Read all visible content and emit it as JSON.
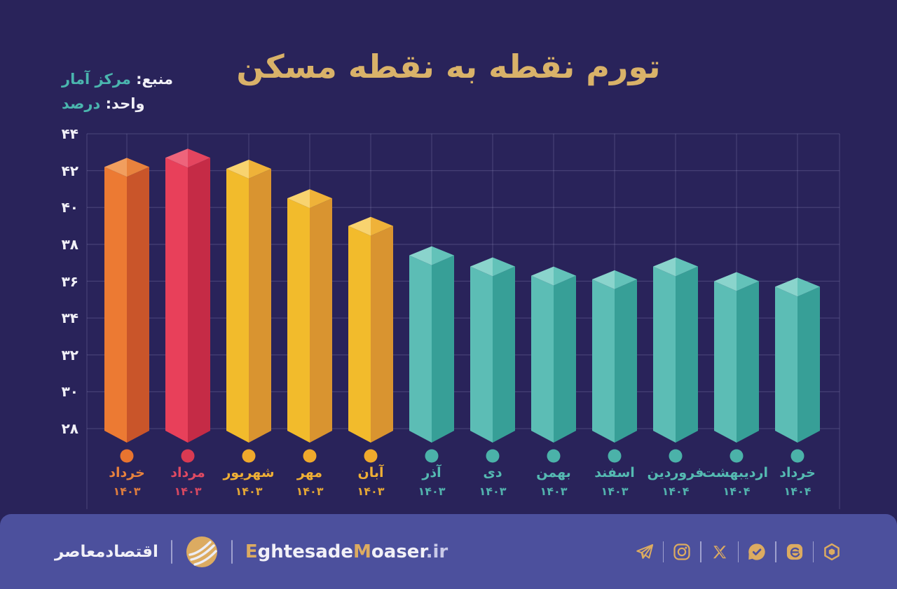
{
  "header": {
    "title": "تورم نقطه به نقطه مسکن",
    "source_label": "منبع:",
    "source_value": "مرکز آمار",
    "unit_label": "واحد:",
    "unit_value": "درصد"
  },
  "chart_data": {
    "type": "bar",
    "title": "تورم نقطه به نقطه مسکن",
    "source": "مرکز آمار",
    "ylabel": "درصد",
    "xlabel": "",
    "ylim": [
      28,
      44
    ],
    "ytick_step": 2,
    "yticks_fa": [
      "۴۴",
      "۴۲",
      "۴۰",
      "۳۸",
      "۳۶",
      "۳۴",
      "۳۲",
      "۳۰",
      "۲۸"
    ],
    "grid": true,
    "legend": "none",
    "layout": {
      "months_order": "left-to-right",
      "yaxis_side": "left",
      "bar_style": "isometric-3d-column",
      "category_marker": "colored-dot-below-bar"
    },
    "note": "no numeric data labels shown; values estimated from gridlines",
    "categories": [
      {
        "month": "خرداد",
        "year": "۱۴۰۳",
        "group": "orange"
      },
      {
        "month": "مرداد",
        "year": "۱۴۰۳",
        "group": "red"
      },
      {
        "month": "شهریور",
        "year": "۱۴۰۳",
        "group": "yellow"
      },
      {
        "month": "مهر",
        "year": "۱۴۰۳",
        "group": "yellow"
      },
      {
        "month": "آبان",
        "year": "۱۴۰۳",
        "group": "yellow"
      },
      {
        "month": "آذر",
        "year": "۱۴۰۳",
        "group": "teal"
      },
      {
        "month": "دی",
        "year": "۱۴۰۳",
        "group": "teal"
      },
      {
        "month": "بهمن",
        "year": "۱۴۰۳",
        "group": "teal"
      },
      {
        "month": "اسفند",
        "year": "۱۴۰۳",
        "group": "teal"
      },
      {
        "month": "فروردین",
        "year": "۱۴۰۴",
        "group": "teal"
      },
      {
        "month": "اردیبهشت",
        "year": "۱۴۰۴",
        "group": "teal"
      },
      {
        "month": "خرداد",
        "year": "۱۴۰۴",
        "group": "teal"
      }
    ],
    "values": [
      42.2,
      42.7,
      42.1,
      40.5,
      39.0,
      37.4,
      36.8,
      36.3,
      36.1,
      36.8,
      36.0,
      35.7
    ],
    "palette": {
      "orange": {
        "left": "#EC7A33",
        "right": "#C9552A",
        "topLeft": "#F19E5E",
        "topRight": "#E8823D",
        "dot": "#E8742F",
        "label": "#E8823D"
      },
      "red": {
        "left": "#E8405A",
        "right": "#C52B46",
        "topLeft": "#EE647B",
        "topRight": "#E4455F",
        "dot": "#D93A52",
        "label": "#E04A62"
      },
      "yellow": {
        "left": "#F2BB2C",
        "right": "#D99430",
        "topLeft": "#F8D36F",
        "topRight": "#EFB239",
        "dot": "#EFA92C",
        "label": "#EFAF35"
      },
      "teal": {
        "left": "#5CBDB5",
        "right": "#379F97",
        "topLeft": "#8AD4CC",
        "topRight": "#63C2B9",
        "dot": "#4BB2A9",
        "label": "#55BAB2"
      }
    }
  },
  "footer": {
    "brand_fa": "اقتصادمعاصر",
    "site": {
      "e1": "E",
      "part1": "ghtesade",
      "m": "M",
      "part2": "oaser",
      "tld": ".ir"
    },
    "icons": [
      "telegram",
      "instagram",
      "x",
      "bale",
      "eitaa",
      "rubika"
    ]
  },
  "colors": {
    "background": "#29235A",
    "gold": "#D9B269",
    "teal": "#4AB5AE",
    "white": "#F1F0F7",
    "grid": "rgba(173,170,215,0.22)",
    "footer_bg": "#4C509D",
    "icon_gold": "#DCAB61",
    "divider": "#9FA1CF",
    "tld": "#C9CAE8"
  }
}
